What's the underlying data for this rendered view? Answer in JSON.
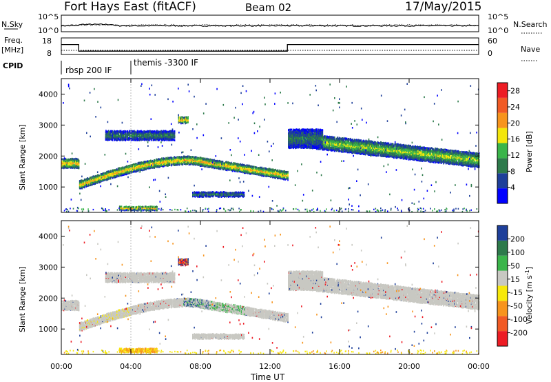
{
  "header": {
    "title": "Fort Hays East (fitACF)",
    "beam": "Beam 02",
    "date": "17/May/2015"
  },
  "labels": {
    "nsky": "N.Sky",
    "nsearch": "N.Search",
    "freq": "Freq.",
    "mhz": "[MHz]",
    "nave": "Nave",
    "cpid": "CPID",
    "nsky_ticks": [
      "10^5",
      "10^0"
    ],
    "nsearch_ticks": [
      "10^5",
      "10^0"
    ],
    "freq_ticks": [
      "18",
      "8"
    ],
    "nave_ticks": [
      "60",
      "0"
    ]
  },
  "cpid_segments": [
    {
      "label": "rbsp 200 IF",
      "start_hour": 0
    },
    {
      "label": "themis -3300 IF",
      "start_hour": 4
    }
  ],
  "colors": {
    "power": [
      "#0000ff",
      "#1e3f9a",
      "#2d7a4b",
      "#3ab54a",
      "#f3e60b",
      "#f7941d",
      "#f15a24",
      "#ed1c24"
    ],
    "velocity": [
      "#1e3f9a",
      "#2d7a4b",
      "#3ab54a",
      "#c8c8c2",
      "#f7e80a",
      "#f7941d",
      "#f15a24",
      "#ed1c24"
    ]
  },
  "chart_data": [
    {
      "type": "line",
      "name": "housekeeping",
      "x_range_hours": [
        0,
        24
      ],
      "n_sky_log10_level": 1.8,
      "n_search_log10_level": 2.0,
      "freq_mhz_steps": [
        {
          "start_hour": 0,
          "end_hour": 1,
          "value": 14
        },
        {
          "start_hour": 1,
          "end_hour": 13,
          "value": 10
        },
        {
          "start_hour": 13,
          "end_hour": 24,
          "value": 14
        }
      ],
      "nave_level": 15
    },
    {
      "type": "heatmap",
      "name": "power",
      "ylabel": "Slant Range [km]",
      "xlabel": "Time UT",
      "xlim_hours": [
        0,
        24
      ],
      "ylim": [
        180,
        4500
      ],
      "x_tick_labels": [
        "00:00",
        "04:00",
        "08:00",
        "12:00",
        "16:00",
        "20:00",
        "00:00"
      ],
      "y_ticks": [
        1000,
        2000,
        3000,
        4000
      ],
      "colorbar": {
        "label": "Power [dB]",
        "ticks": [
          4,
          8,
          12,
          16,
          20,
          24,
          28
        ],
        "range": [
          0,
          30
        ]
      },
      "echo_bands": [
        {
          "start_hour": 0,
          "end_hour": 1.0,
          "range_km": 1800,
          "width_km": 300,
          "level": 20
        },
        {
          "start_hour": 1.0,
          "end_hour": 13.0,
          "range_start_km": 1100,
          "range_peak_km": 1900,
          "peak_hour": 7.5,
          "range_end_km": 1400,
          "width_km": 260,
          "level": 20
        },
        {
          "start_hour": 2.5,
          "end_hour": 6.5,
          "range_km": 2700,
          "width_km": 300,
          "level": 10
        },
        {
          "start_hour": 6.7,
          "end_hour": 7.3,
          "range_km": 3200,
          "width_km": 200,
          "level": 22
        },
        {
          "start_hour": 7.5,
          "end_hour": 10.5,
          "range_km": 800,
          "width_km": 150,
          "level": 10
        },
        {
          "start_hour": 3.3,
          "end_hour": 5.5,
          "range_km": 350,
          "width_km": 120,
          "level": 22
        },
        {
          "start_hour": 13.0,
          "end_hour": 24.0,
          "range_start_km": 2600,
          "range_end_km": 1900,
          "width_km": 450,
          "level": 16
        },
        {
          "start_hour": 13.0,
          "end_hour": 15.0,
          "range_km": 2600,
          "width_km": 600,
          "level": 10
        }
      ]
    },
    {
      "type": "heatmap",
      "name": "velocity",
      "ylabel": "Slant Range [km]",
      "xlabel": "Time UT",
      "xlim_hours": [
        0,
        24
      ],
      "ylim": [
        180,
        4500
      ],
      "x_tick_labels": [
        "00:00",
        "04:00",
        "08:00",
        "12:00",
        "16:00",
        "20:00",
        "00:00"
      ],
      "y_ticks": [
        1000,
        2000,
        3000,
        4000
      ],
      "colorbar": {
        "label": "Velocity [m s^-1]",
        "ticks": [
          200,
          100,
          50,
          15,
          -15,
          -50,
          -100,
          -200
        ]
      },
      "notes": "mostly ground scatter (-15 to 15 m/s, grey) with orange/yellow near 04:00 and blue/green ionospheric scatter near 08:00"
    }
  ],
  "axis": {
    "xlabel": "Time UT",
    "ylabel": "Slant Range [km]",
    "power_label": "Power [dB]",
    "velocity_label": "Velocity [m s",
    "velocity_label_sup": "-1",
    "velocity_label_end": "]"
  }
}
